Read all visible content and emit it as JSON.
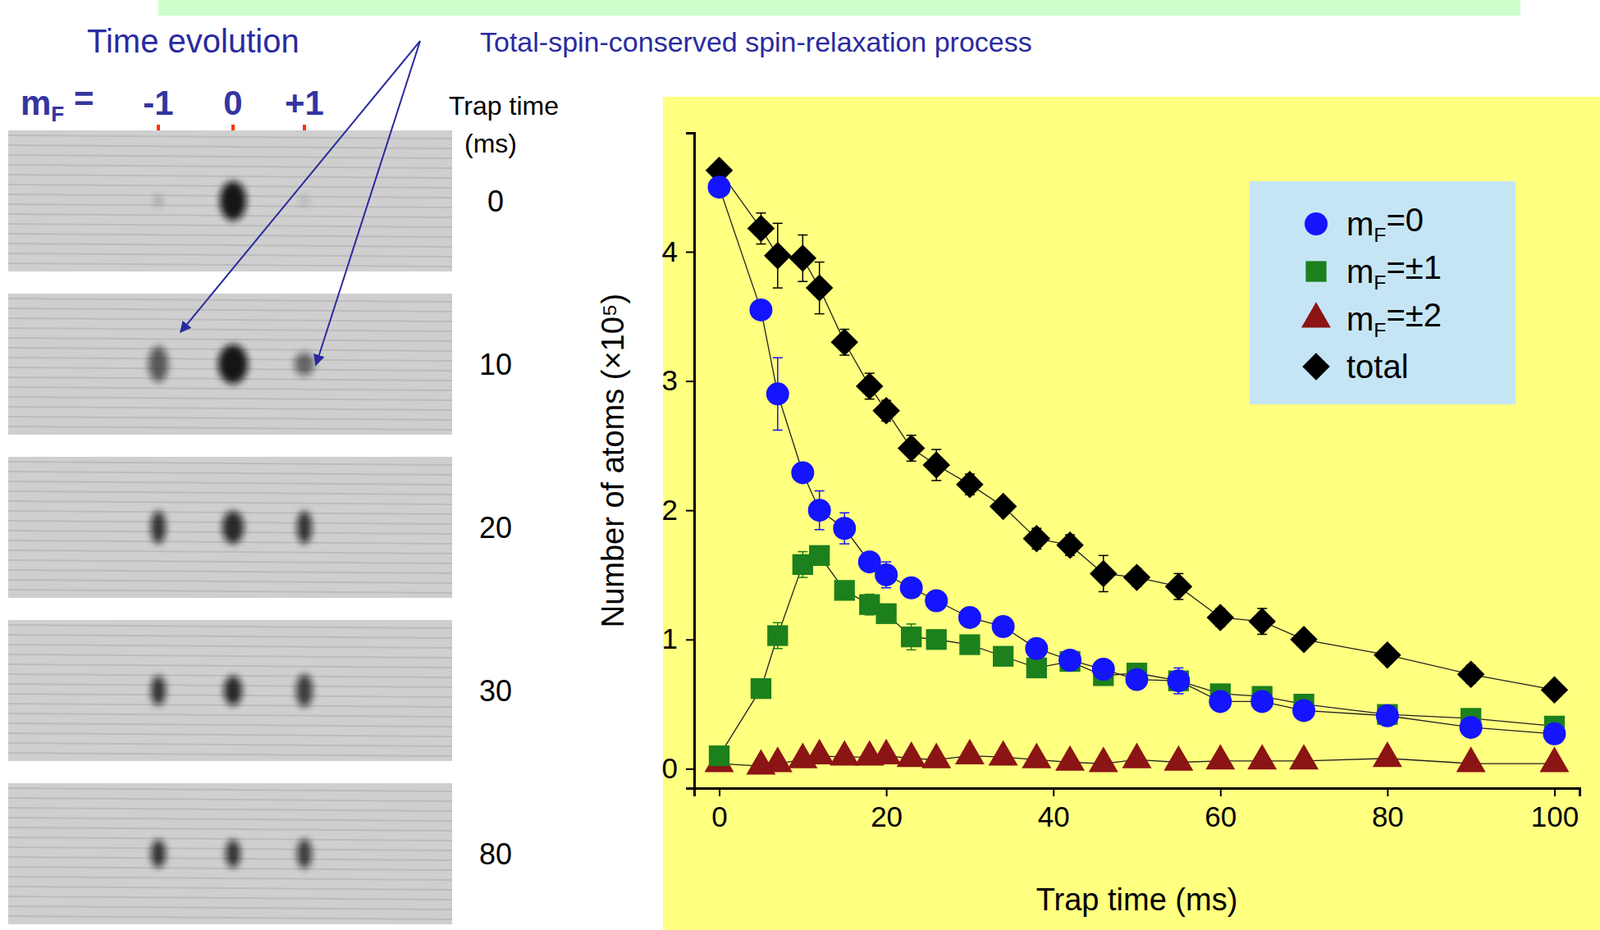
{
  "slide": {
    "left_heading": "Time evolution",
    "right_heading": "Total-spin-conserved spin-relaxation process"
  },
  "images": {
    "column_header": "mF =",
    "columns": [
      "-1",
      "0",
      "+1"
    ],
    "times_header": [
      "Trap time",
      "(ms)"
    ],
    "times": [
      0,
      10,
      20,
      30,
      80
    ]
  },
  "chart_data": {
    "type": "line",
    "x_label": "Trap time (ms)",
    "y_label": "Number of atoms (×10⁵)",
    "x": [
      0,
      5,
      7,
      10,
      12,
      15,
      18,
      20,
      23,
      26,
      30,
      34,
      38,
      42,
      46,
      50,
      55,
      60,
      65,
      70,
      80,
      90,
      100
    ],
    "series": [
      {
        "name": "mF=0",
        "color": "#1414ff",
        "marker": "circle",
        "line_style": "solid",
        "values": [
          4.5,
          3.55,
          2.9,
          2.29,
          2.0,
          1.86,
          1.6,
          1.5,
          1.4,
          1.3,
          1.17,
          1.1,
          0.93,
          0.84,
          0.77,
          0.69,
          0.68,
          0.52,
          0.52,
          0.45,
          0.41,
          0.32,
          0.27
        ],
        "errors": [
          0.05,
          0.05,
          0.28,
          0.05,
          0.15,
          0.12,
          0.05,
          0.1,
          0.05,
          0.05,
          0.04,
          0.04,
          0.04,
          0.05,
          0.05,
          0.04,
          0.1,
          0.06,
          0.06,
          0.04,
          0.04,
          0.05,
          0.04
        ]
      },
      {
        "name": "mF=±1",
        "color": "#1c801c",
        "marker": "square",
        "line_style": "solid",
        "values": [
          0.1,
          0.62,
          1.03,
          1.58,
          1.65,
          1.38,
          1.27,
          1.2,
          1.02,
          1.0,
          0.96,
          0.87,
          0.78,
          0.83,
          0.72,
          0.74,
          0.68,
          0.58,
          0.56,
          0.5,
          0.42,
          0.39,
          0.33
        ],
        "errors": [
          0.03,
          0.04,
          0.1,
          0.1,
          0.07,
          0.05,
          0.08,
          0.06,
          0.1,
          0.05,
          0.04,
          0.04,
          0.05,
          0.04,
          0.05,
          0.05,
          0.04,
          0.04,
          0.04,
          0.04,
          0.05,
          0.04,
          0.04
        ]
      },
      {
        "name": "mF=±2",
        "color": "#8b1414",
        "marker": "triangle",
        "line_style": "solid",
        "values": [
          0.04,
          0.02,
          0.04,
          0.07,
          0.1,
          0.09,
          0.09,
          0.1,
          0.08,
          0.07,
          0.1,
          0.09,
          0.07,
          0.05,
          0.04,
          0.07,
          0.05,
          0.06,
          0.06,
          0.06,
          0.08,
          0.04,
          0.04
        ]
      },
      {
        "name": "total",
        "color": "#000000",
        "marker": "diamond",
        "line_style": "solid",
        "values": [
          4.63,
          4.18,
          3.97,
          3.95,
          3.72,
          3.3,
          2.96,
          2.77,
          2.48,
          2.35,
          2.2,
          2.03,
          1.78,
          1.73,
          1.51,
          1.48,
          1.41,
          1.17,
          1.14,
          1.0,
          0.88,
          0.73,
          0.61
        ],
        "errors": [
          0.05,
          0.12,
          0.25,
          0.18,
          0.2,
          0.1,
          0.1,
          0.08,
          0.1,
          0.12,
          0.08,
          0.05,
          0.08,
          0.08,
          0.14,
          0.07,
          0.1,
          0.07,
          0.1,
          0.05,
          0.05,
          0.07,
          0.05
        ]
      }
    ],
    "xlim": [
      -3,
      103
    ],
    "ylim": [
      -0.15,
      4.92
    ],
    "xticks": [
      0,
      20,
      40,
      60,
      80,
      100
    ],
    "yticks": [
      0,
      1,
      2,
      3,
      4
    ],
    "grid": false,
    "legend": "upper right"
  }
}
